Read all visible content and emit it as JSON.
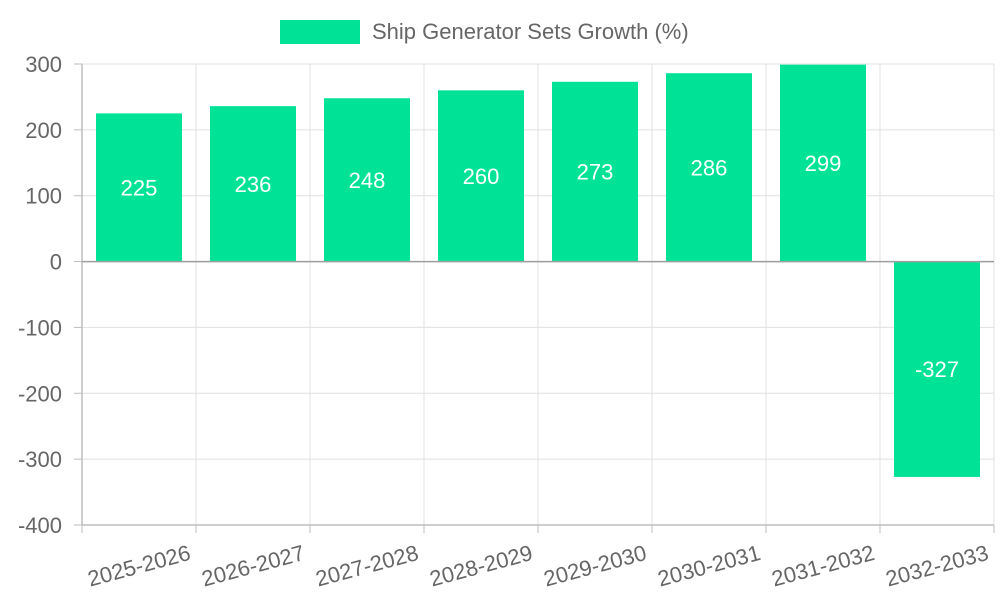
{
  "chart_data": {
    "type": "bar",
    "title": "",
    "xlabel": "",
    "ylabel": "",
    "categories": [
      "2025-2026",
      "2026-2027",
      "2027-2028",
      "2028-2029",
      "2029-2030",
      "2030-2031",
      "2031-2032",
      "2032-2033"
    ],
    "series": [
      {
        "name": "Ship Generator Sets Growth (%)",
        "values": [
          225,
          236,
          248,
          260,
          273,
          286,
          299,
          -327
        ],
        "color": "#00e396"
      }
    ],
    "ylim": [
      -400,
      300
    ],
    "yticks": [
      300,
      200,
      100,
      0,
      -100,
      -200,
      -300,
      -400
    ],
    "grid": true,
    "legend_position": "top-center",
    "data_labels": true,
    "colors": {
      "bar": "#00e396",
      "data_label": "#ffffff",
      "grid": "#e0e0e0",
      "axis": "#bdbdbd",
      "zero_line": "#9e9e9e",
      "tick_text": "#666666",
      "legend_text": "#666666"
    }
  }
}
